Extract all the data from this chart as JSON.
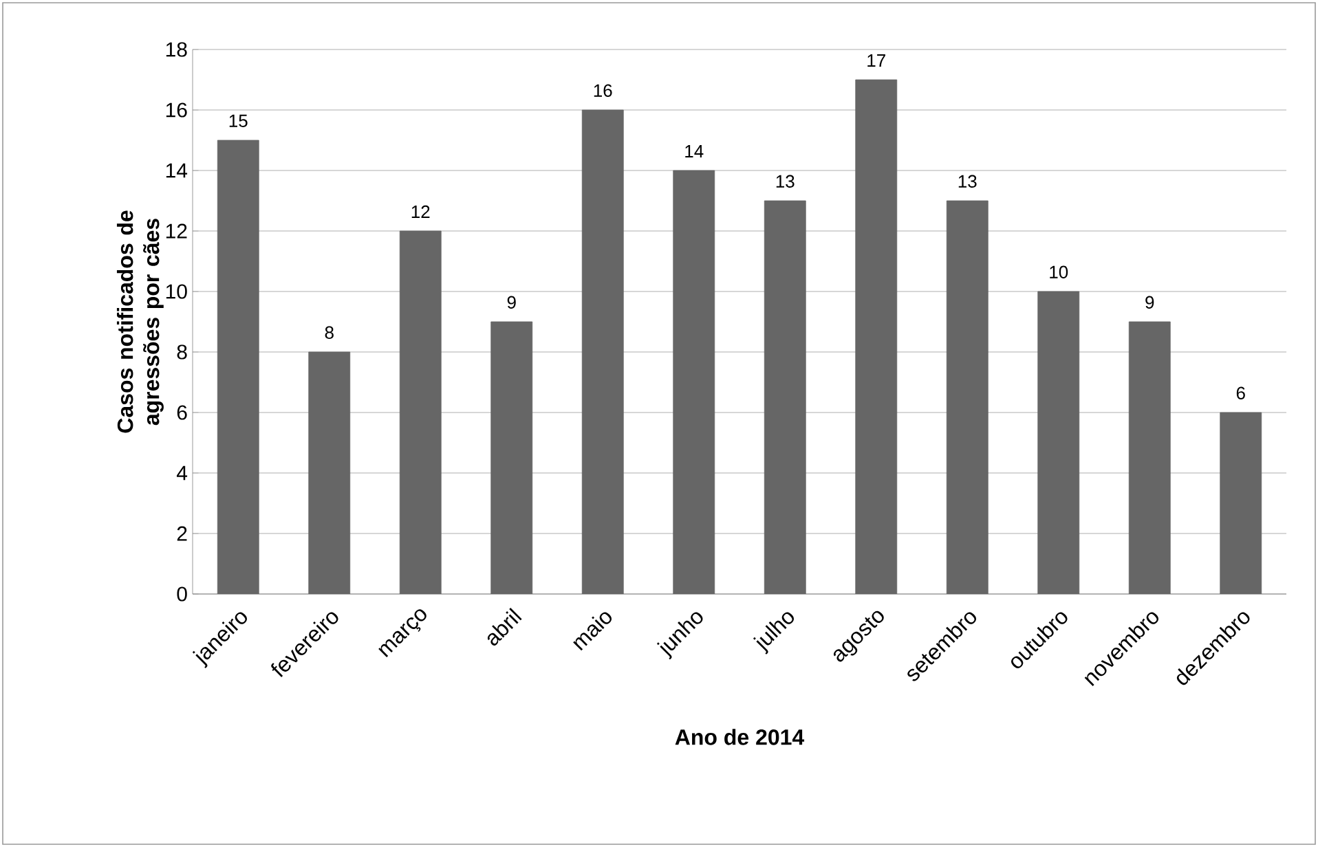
{
  "chart_data": {
    "type": "bar",
    "xlabel": "Ano de 2014",
    "ylabel": "Casos notificados de agressões por cães",
    "categories": [
      "janeiro",
      "fevereiro",
      "março",
      "abril",
      "maio",
      "junho",
      "julho",
      "agosto",
      "setembro",
      "outubro",
      "novembro",
      "dezembro"
    ],
    "values": [
      15,
      8,
      12,
      9,
      16,
      14,
      13,
      17,
      13,
      10,
      9,
      6
    ],
    "color": "#666666",
    "ylim": [
      0,
      18
    ],
    "yticks": [
      0,
      2,
      4,
      6,
      8,
      10,
      12,
      14,
      16,
      18
    ],
    "grid": "y",
    "data_labels": true
  }
}
